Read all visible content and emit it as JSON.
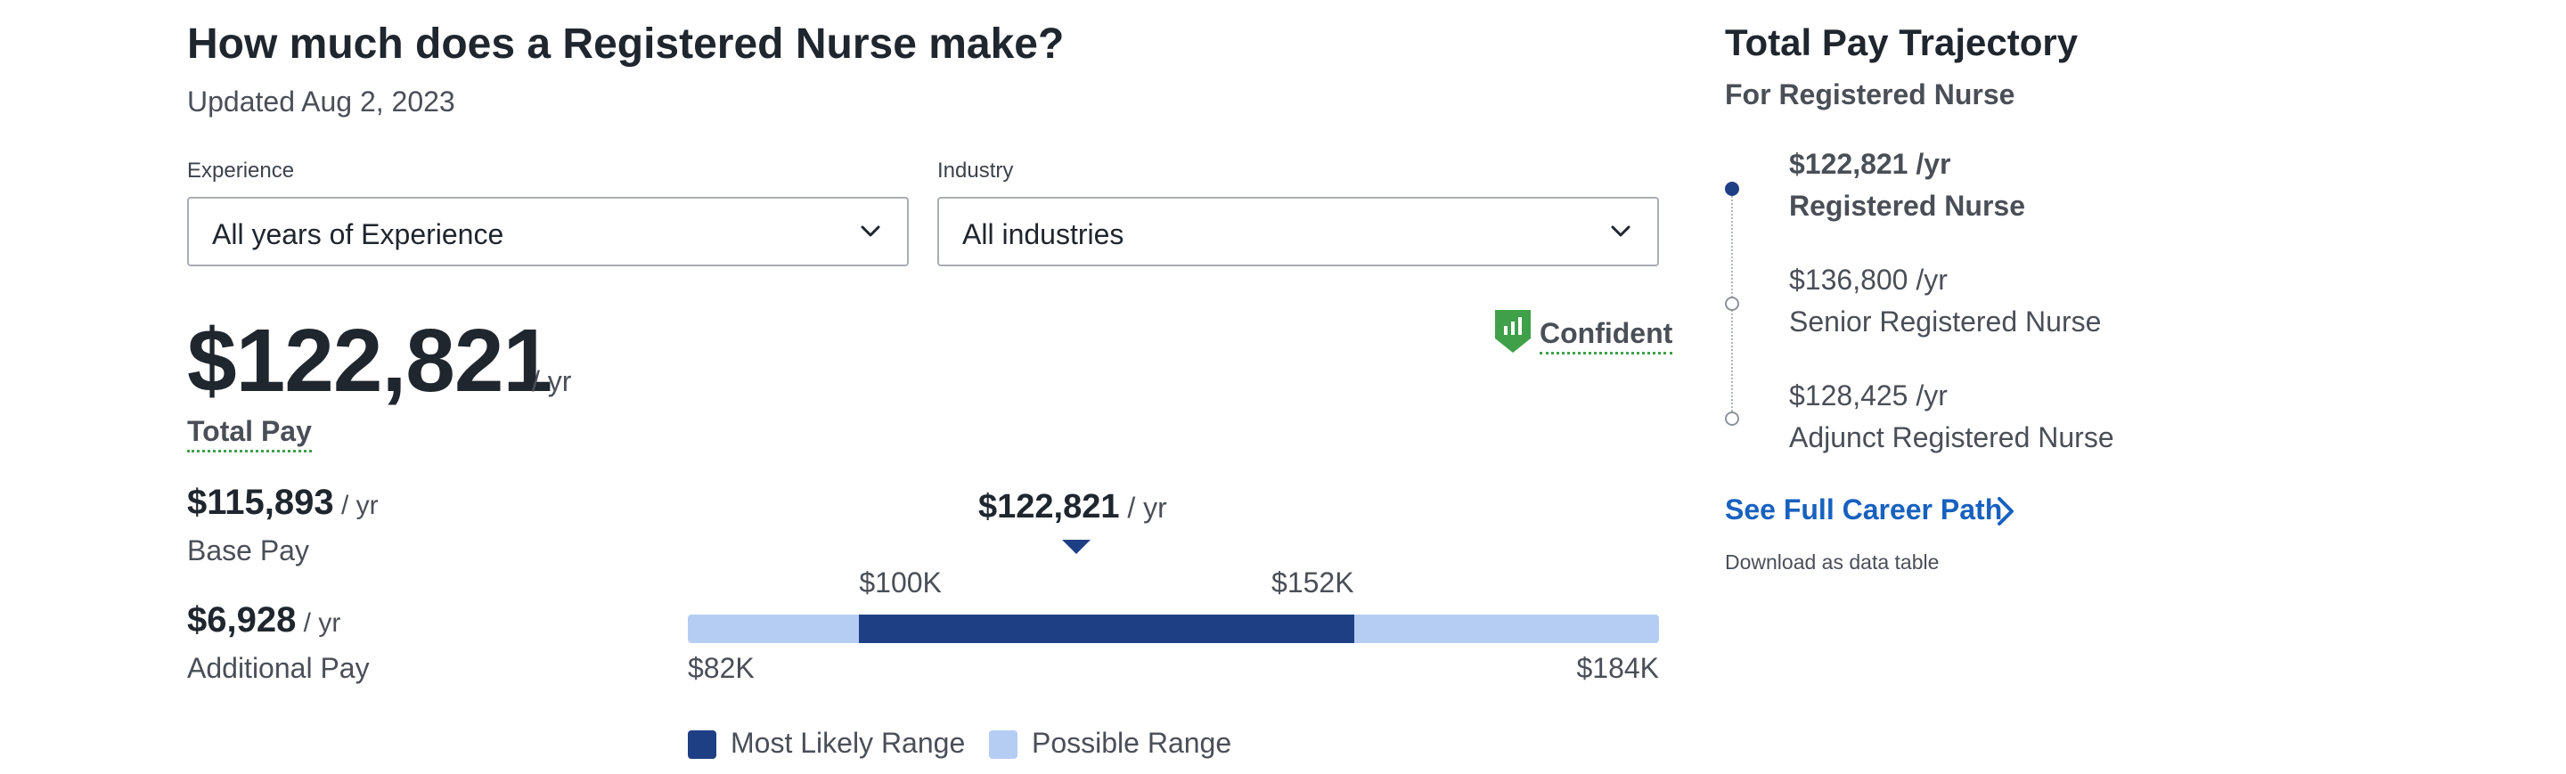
{
  "header": {
    "title": "How much does a Registered Nurse make?",
    "updated": "Updated Aug 2, 2023"
  },
  "filters": {
    "experience": {
      "label": "Experience",
      "value": "All years of Experience"
    },
    "industry": {
      "label": "Industry",
      "value": "All industries"
    }
  },
  "total_pay": {
    "value": "$122,821",
    "unit": "/ yr",
    "label": "Total Pay",
    "confidence": "Confident"
  },
  "base_pay": {
    "value": "$115,893",
    "unit": " / yr",
    "label": "Base Pay"
  },
  "additional_pay": {
    "value": "$6,928",
    "unit": " / yr",
    "label": "Additional Pay"
  },
  "range": {
    "median": "$122,821",
    "median_unit": " / yr",
    "likely_low": "$100K",
    "likely_high": "$152K",
    "possible_low": "$82K",
    "possible_high": "$184K",
    "likely_low_num": 100,
    "likely_high_num": 152,
    "possible_low_num": 82,
    "possible_high_num": 184,
    "median_num": 122.821,
    "legend_likely": "Most Likely Range",
    "legend_possible": "Possible Range",
    "colors": {
      "likely": "#1f3f85",
      "possible": "#b5cdf3"
    }
  },
  "trajectory": {
    "title": "Total Pay Trajectory",
    "subtitle": "For Registered Nurse",
    "items": [
      {
        "pay": "$122,821 /yr",
        "name": "Registered Nurse",
        "current": true
      },
      {
        "pay": "$136,800 /yr",
        "name": "Senior Registered Nurse",
        "current": false
      },
      {
        "pay": "$128,425 /yr",
        "name": "Adjunct Registered Nurse",
        "current": false
      }
    ],
    "career_link": "See Full Career Path",
    "download_link": "Download as data table"
  },
  "icons": {
    "dropdown": "chevron-down-icon",
    "confidence": "bar-chart-shield-icon",
    "career_link": "chevron-right-icon",
    "median_marker": "triangle-down-icon"
  },
  "colors": {
    "link": "#1861bf",
    "confidence_green": "#3fa049",
    "timeline_current": "#1f3f85"
  }
}
